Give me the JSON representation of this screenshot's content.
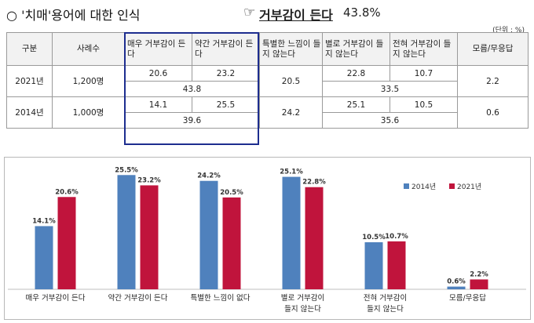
{
  "title": {
    "bullet": "○",
    "text": "'치매'용어에 대한 인식",
    "pointer": "☞",
    "key_label": "거부감이 든다",
    "key_value": "43.8%"
  },
  "unit": "(단위 : %)",
  "table": {
    "headers": [
      "구분",
      "사례수",
      "매우 거부감이 든다",
      "약간 거부감이 든다",
      "특별한 느낌이 들지 않는다",
      "별로 거부감이 들지 않는다",
      "전혀 거부감이 들지 않는다",
      "모름/무응답"
    ],
    "rows": [
      {
        "year": "2021년",
        "count": "1,200명",
        "very": "20.6",
        "somewhat": "23.2",
        "subtotal_reject": "43.8",
        "neutral": "20.5",
        "not_much": "22.8",
        "not_at_all": "10.7",
        "subtotal_accept": "33.5",
        "unknown": "2.2"
      },
      {
        "year": "2014년",
        "count": "1,000명",
        "very": "14.1",
        "somewhat": "25.5",
        "subtotal_reject": "39.6",
        "neutral": "24.2",
        "not_much": "25.1",
        "not_at_all": "10.5",
        "subtotal_accept": "35.6",
        "unknown": "0.6"
      }
    ]
  },
  "chart_data": {
    "type": "bar",
    "categories": [
      "매우 거부감이 든다",
      "약간 거부감이 든다",
      "특별한 느낌이 없다",
      "별로 거부감이 들지 않는다",
      "전혀 거부감이 들지 않는다",
      "모름/무응답"
    ],
    "series": [
      {
        "name": "2014년",
        "values": [
          14.1,
          25.5,
          24.2,
          25.1,
          10.5,
          0.6
        ],
        "labels": [
          "14.1%",
          "25.5%",
          "24.2%",
          "25.1%",
          "10.5%",
          "0.6%"
        ],
        "color": "#4f81bd"
      },
      {
        "name": "2021년",
        "values": [
          20.6,
          23.2,
          20.5,
          22.8,
          10.7,
          2.2
        ],
        "labels": [
          "20.6%",
          "23.2%",
          "20.5%",
          "22.8%",
          "10.7%",
          "2.2%"
        ],
        "color": "#c0143c"
      }
    ],
    "legend_position": "top-right",
    "grid": false,
    "ylim": [
      0,
      28
    ]
  }
}
